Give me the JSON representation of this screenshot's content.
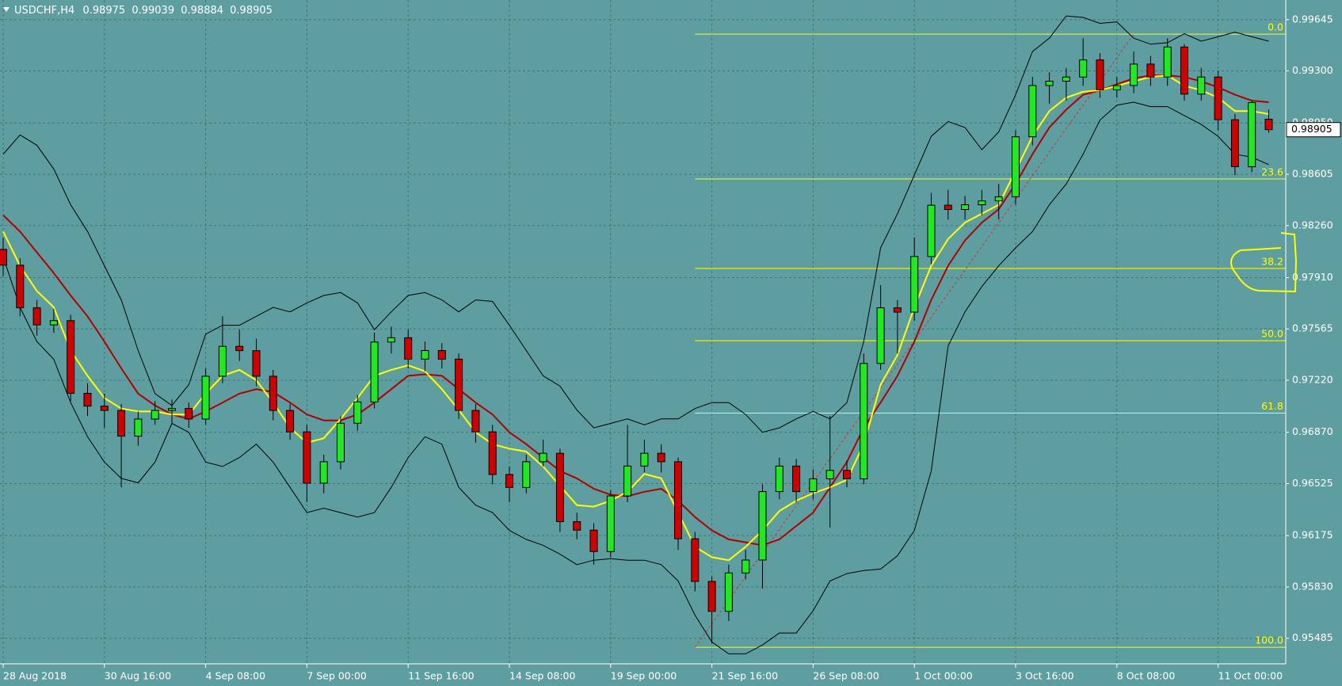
{
  "chart_data": {
    "type": "candlestick",
    "title": "USDCHF,H4",
    "categories": [
      "28 Aug 2018",
      null,
      null,
      null,
      null,
      null,
      "30 Aug 16:00",
      null,
      null,
      null,
      null,
      null,
      "4 Sep 08:00",
      null,
      null,
      null,
      null,
      null,
      "7 Sep 00:00",
      null,
      null,
      null,
      null,
      null,
      "11 Sep 16:00",
      null,
      null,
      null,
      null,
      null,
      "14 Sep 08:00",
      null,
      null,
      null,
      null,
      null,
      "19 Sep 00:00",
      null,
      null,
      null,
      null,
      null,
      "21 Sep 16:00",
      null,
      null,
      null,
      null,
      null,
      "26 Sep 08:00",
      null,
      null,
      null,
      null,
      null,
      "1 Oct 00:00",
      null,
      null,
      null,
      null,
      null,
      "3 Oct 16:00",
      null,
      null,
      null,
      null,
      null,
      "8 Oct 08:00",
      null,
      null,
      null,
      null,
      null,
      "11 Oct 00:00",
      null,
      null,
      null
    ],
    "open": [
      0.981,
      0.97994,
      0.97707,
      0.97592,
      0.97621,
      0.97132,
      0.97046,
      0.97017,
      0.96844,
      0.96959,
      0.97017,
      0.9703,
      0.96959,
      0.97247,
      0.97448,
      0.97419,
      0.97247,
      0.97017,
      0.96873,
      0.96528,
      0.96672,
      0.96931,
      0.97074,
      0.97477,
      0.97506,
      0.97362,
      0.9742,
      0.97362,
      0.97017,
      0.96873,
      0.96586,
      0.96499,
      0.96672,
      0.96729,
      0.96269,
      0.96212,
      0.96068,
      0.96442,
      0.96643,
      0.96729,
      0.96672,
      0.96154,
      0.95867,
      0.95666,
      0.95924,
      0.96011,
      0.96471,
      0.96643,
      0.96471,
      0.96557,
      0.96614,
      0.96557,
      0.97333,
      0.97707,
      0.97678,
      0.98052,
      0.98397,
      0.98368,
      0.984,
      0.98426,
      0.98454,
      0.98857,
      0.99202,
      0.99231,
      0.99259,
      0.99374,
      0.99173,
      0.99202,
      0.99346,
      0.99259,
      0.99461,
      0.99144,
      0.99259,
      0.98972,
      0.98656,
      0.98975
    ],
    "high": [
      0.9818,
      0.9804,
      0.9776,
      0.977,
      0.9766,
      0.972,
      0.9713,
      0.9706,
      0.9701,
      0.9708,
      0.9709,
      0.9707,
      0.973,
      0.9765,
      0.9756,
      0.975,
      0.9729,
      0.9706,
      0.9692,
      0.9672,
      0.9698,
      0.9712,
      0.9754,
      0.9758,
      0.9756,
      0.9748,
      0.9747,
      0.974,
      0.9706,
      0.9692,
      0.9664,
      0.9672,
      0.9682,
      0.9676,
      0.9633,
      0.9626,
      0.9648,
      0.9692,
      0.9682,
      0.9679,
      0.967,
      0.962,
      0.959,
      0.9598,
      0.9608,
      0.9652,
      0.967,
      0.9669,
      0.9662,
      0.9698,
      0.9668,
      0.974,
      0.9786,
      0.9776,
      0.9818,
      0.9848,
      0.985,
      0.9846,
      0.985,
      0.9854,
      0.989,
      0.9926,
      0.9929,
      0.9932,
      0.9952,
      0.9942,
      0.9926,
      0.9943,
      0.994,
      0.9952,
      0.9948,
      0.9932,
      0.993,
      0.9901,
      0.991,
      0.99039
    ],
    "low": [
      0.9792,
      0.9765,
      0.9752,
      0.9754,
      0.9708,
      0.9698,
      0.969,
      0.965,
      0.9678,
      0.9692,
      0.9693,
      0.969,
      0.9692,
      0.972,
      0.9735,
      0.9718,
      0.9695,
      0.9682,
      0.964,
      0.9646,
      0.9662,
      0.9688,
      0.9703,
      0.974,
      0.973,
      0.9728,
      0.973,
      0.9696,
      0.968,
      0.9652,
      0.964,
      0.9646,
      0.9664,
      0.962,
      0.9615,
      0.9598,
      0.9603,
      0.964,
      0.966,
      0.966,
      0.9608,
      0.958,
      0.9545,
      0.956,
      0.9588,
      0.9582,
      0.9642,
      0.964,
      0.9642,
      0.9623,
      0.965,
      0.9652,
      0.9729,
      0.974,
      0.9762,
      0.98,
      0.983,
      0.983,
      0.9833,
      0.983,
      0.984,
      0.988,
      0.9908,
      0.991,
      0.992,
      0.9912,
      0.9912,
      0.9915,
      0.992,
      0.992,
      0.991,
      0.991,
      0.989,
      0.986,
      0.9862,
      0.98884
    ],
    "close": [
      0.97994,
      0.97707,
      0.97592,
      0.97621,
      0.97132,
      0.97046,
      0.97017,
      0.96844,
      0.96959,
      0.97017,
      0.9703,
      0.96959,
      0.97247,
      0.97448,
      0.97419,
      0.97247,
      0.97017,
      0.96873,
      0.96528,
      0.96672,
      0.96931,
      0.97074,
      0.97477,
      0.97506,
      0.97362,
      0.9742,
      0.97362,
      0.97017,
      0.96873,
      0.96586,
      0.96499,
      0.96672,
      0.96729,
      0.96269,
      0.96212,
      0.96068,
      0.96442,
      0.96643,
      0.96729,
      0.96672,
      0.96154,
      0.95867,
      0.95666,
      0.95924,
      0.96011,
      0.96471,
      0.96643,
      0.96471,
      0.96557,
      0.96614,
      0.96557,
      0.97333,
      0.97707,
      0.97678,
      0.98052,
      0.98397,
      0.98368,
      0.984,
      0.98426,
      0.98454,
      0.98857,
      0.99202,
      0.99231,
      0.99259,
      0.99374,
      0.99173,
      0.99202,
      0.99346,
      0.99259,
      0.99461,
      0.99144,
      0.99259,
      0.98972,
      0.98656,
      0.99087,
      0.98905
    ],
    "up_color": "#22e822",
    "down_color": "#d00000",
    "series": [
      {
        "color": "#000000",
        "values": [
          0.9874,
          0.9887,
          0.988,
          0.9864,
          0.984,
          0.9822,
          0.9799,
          0.9776,
          0.9742,
          0.9713,
          0.9705,
          0.9719,
          0.9753,
          0.9759,
          0.9759,
          0.9765,
          0.9771,
          0.9768,
          0.9774,
          0.9779,
          0.9781,
          0.9774,
          0.9756,
          0.9768,
          0.9779,
          0.9781,
          0.9776,
          0.9768,
          0.9776,
          0.9775,
          0.9759,
          0.9742,
          0.9725,
          0.9718,
          0.9702,
          0.969,
          0.9693,
          0.9696,
          0.9692,
          0.9696,
          0.9696,
          0.9703,
          0.9707,
          0.9707,
          0.9699,
          0.9687,
          0.969,
          0.9696,
          0.9701,
          0.9696,
          0.9707,
          0.9748,
          0.9811,
          0.9834,
          0.986,
          0.9886,
          0.9896,
          0.9892,
          0.9877,
          0.9889,
          0.9914,
          0.9943,
          0.9952,
          0.9967,
          0.9966,
          0.9962,
          0.9963,
          0.9952,
          0.9948,
          0.9949,
          0.9955,
          0.995,
          0.9953,
          0.9956,
          0.9953,
          0.995
        ]
      },
      {
        "color": "#000000",
        "values": [
          0.9805,
          0.9771,
          0.9748,
          0.9736,
          0.9707,
          0.9684,
          0.9667,
          0.9656,
          0.9653,
          0.9667,
          0.9693,
          0.9687,
          0.9667,
          0.9664,
          0.967,
          0.9679,
          0.9667,
          0.965,
          0.9633,
          0.9636,
          0.9633,
          0.963,
          0.9633,
          0.965,
          0.967,
          0.9684,
          0.9679,
          0.965,
          0.9638,
          0.9633,
          0.9621,
          0.9615,
          0.9611,
          0.9605,
          0.9598,
          0.9601,
          0.9602,
          0.9601,
          0.9601,
          0.9598,
          0.9587,
          0.9564,
          0.9546,
          0.9538,
          0.9538,
          0.9544,
          0.9552,
          0.9552,
          0.9567,
          0.9587,
          0.9592,
          0.9594,
          0.9595,
          0.9604,
          0.9621,
          0.9661,
          0.9745,
          0.9768,
          0.9785,
          0.9799,
          0.9811,
          0.9822,
          0.984,
          0.9854,
          0.9874,
          0.9897,
          0.9907,
          0.9909,
          0.9906,
          0.9906,
          0.99,
          0.9894,
          0.9886,
          0.9874,
          0.9872,
          0.9867
        ]
      },
      {
        "color": "#b00000",
        "values": [
          0.9833,
          0.9822,
          0.9808,
          0.9794,
          0.9779,
          0.9765,
          0.9748,
          0.973,
          0.9713,
          0.9705,
          0.9699,
          0.9696,
          0.9701,
          0.9707,
          0.9713,
          0.9716,
          0.9714,
          0.9707,
          0.9699,
          0.9695,
          0.9695,
          0.9699,
          0.9707,
          0.9716,
          0.9725,
          0.9726,
          0.9725,
          0.9716,
          0.9707,
          0.9699,
          0.9687,
          0.9679,
          0.967,
          0.9661,
          0.9656,
          0.9649,
          0.9645,
          0.9644,
          0.9647,
          0.9649,
          0.9641,
          0.963,
          0.9621,
          0.9615,
          0.9613,
          0.9611,
          0.9615,
          0.9624,
          0.9633,
          0.965,
          0.9667,
          0.969,
          0.9707,
          0.9725,
          0.9748,
          0.9776,
          0.9799,
          0.9816,
          0.9828,
          0.9837,
          0.9854,
          0.9874,
          0.9892,
          0.9904,
          0.9914,
          0.9917,
          0.9921,
          0.9925,
          0.9927,
          0.9927,
          0.9926,
          0.9923,
          0.9919,
          0.9914,
          0.991,
          0.9909
        ]
      },
      {
        "color": "#ffff00",
        "values": [
          0.9822,
          0.9799,
          0.9782,
          0.9771,
          0.9742,
          0.9725,
          0.971,
          0.9703,
          0.9701,
          0.9701,
          0.9699,
          0.9699,
          0.9713,
          0.9725,
          0.9729,
          0.9722,
          0.9707,
          0.969,
          0.968,
          0.9683,
          0.9696,
          0.971,
          0.9725,
          0.9729,
          0.9732,
          0.9728,
          0.9716,
          0.9702,
          0.9687,
          0.9679,
          0.9676,
          0.9674,
          0.9664,
          0.9651,
          0.9638,
          0.9637,
          0.9641,
          0.9647,
          0.9659,
          0.9656,
          0.9633,
          0.961,
          0.9603,
          0.9601,
          0.961,
          0.9621,
          0.9634,
          0.9641,
          0.9646,
          0.965,
          0.9655,
          0.9679,
          0.9719,
          0.9739,
          0.9771,
          0.9799,
          0.9817,
          0.9828,
          0.9834,
          0.984,
          0.9863,
          0.9886,
          0.9903,
          0.9912,
          0.9916,
          0.9917,
          0.992,
          0.9923,
          0.9926,
          0.9927,
          0.992,
          0.9917,
          0.9912,
          0.9903,
          0.9903,
          0.9901
        ]
      }
    ],
    "fibonacci": {
      "color": "#ffff00",
      "trend_color": "#d03030",
      "start": 41,
      "end": 67,
      "high": 0.99547,
      "low": 0.95424,
      "levels": [
        {
          "value": 0,
          "label": "0.0"
        },
        23.6,
        38.2,
        {
          "value": 50,
          "label": "50.0"
        },
        61.8,
        {
          "value": 100,
          "label": "100.0"
        }
      ]
    },
    "ylim": [
      0.95313,
      0.99777
    ],
    "yticks": [
      0.99645,
      {
        "value": 0.993,
        "label": "0.99300"
      },
      {
        "value": 0.9895,
        "label": "0.98950"
      },
      0.98605,
      {
        "value": 0.9826,
        "label": "0.98260"
      },
      {
        "value": 0.9791,
        "label": "0.97910"
      },
      0.97565,
      {
        "value": 0.9722,
        "label": "0.97220"
      },
      {
        "value": 0.9687,
        "label": "0.96870"
      },
      0.96525,
      0.96175,
      {
        "value": 0.9583,
        "label": "0.95830"
      },
      0.95485
    ],
    "grid": true
  }
}
